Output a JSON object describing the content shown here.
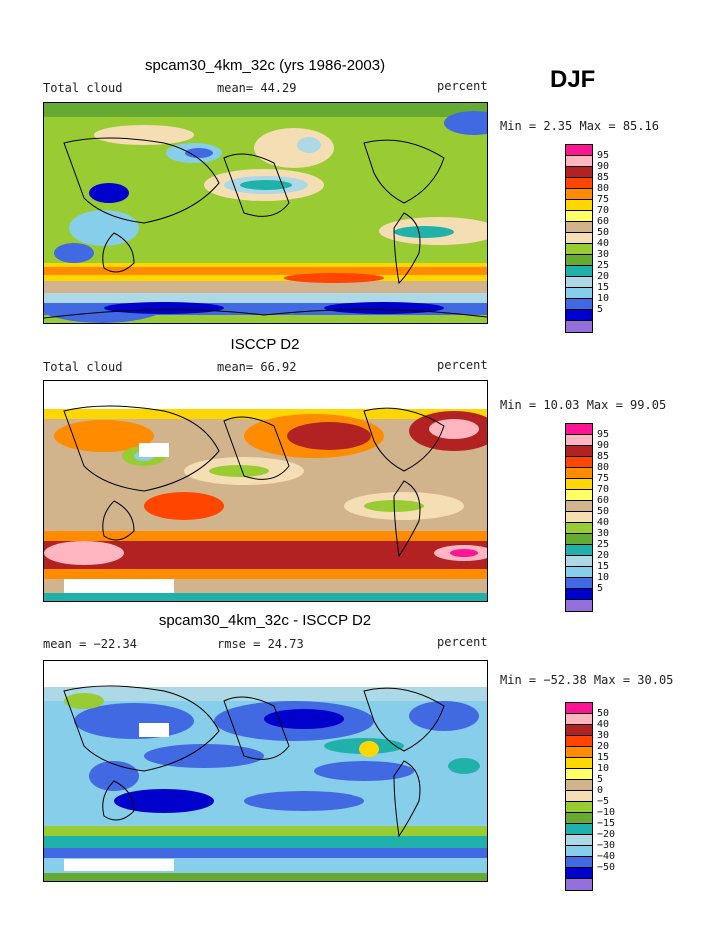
{
  "season": "DJF",
  "panels": [
    {
      "title": "spcam30_4km_32c (yrs 1986-2003)",
      "left_label": "Total cloud",
      "mid_label": "mean=  44.29",
      "right_label": "percent",
      "minmax": "Min =   2.35 Max =  85.16"
    },
    {
      "title": "ISCCP D2",
      "left_label": "Total cloud",
      "mid_label": "mean=  66.92",
      "right_label": "percent",
      "minmax": "Min =  10.03 Max =  99.05"
    },
    {
      "title": "spcam30_4km_32c - ISCCP D2",
      "left_label": "mean = −22.34",
      "mid_label": "rmse =  24.73",
      "right_label": "percent",
      "minmax": "Min = −52.38 Max =  30.05"
    }
  ],
  "colorbar_abs": {
    "colors": [
      "#ff1493",
      "#ffb6c1",
      "#b22222",
      "#ff4500",
      "#ff8c00",
      "#ffd700",
      "#ffff66",
      "#d2b48c",
      "#f5deb3",
      "#99cc33",
      "#66aa33",
      "#20b2aa",
      "#add8e6",
      "#87ceeb",
      "#4169e1",
      "#0000cd",
      "#9370db"
    ],
    "labels": [
      "95",
      "90",
      "85",
      "80",
      "75",
      "70",
      "60",
      "50",
      "40",
      "30",
      "25",
      "20",
      "15",
      "10",
      "5"
    ]
  },
  "colorbar_diff": {
    "colors": [
      "#ff1493",
      "#ffb6c1",
      "#b22222",
      "#ff4500",
      "#ff8c00",
      "#ffd700",
      "#ffff66",
      "#d2b48c",
      "#f5deb3",
      "#99cc33",
      "#66aa33",
      "#20b2aa",
      "#add8e6",
      "#87ceeb",
      "#4169e1",
      "#0000cd",
      "#9370db"
    ],
    "labels": [
      "50",
      "40",
      "30",
      "20",
      "15",
      "10",
      "5",
      "0",
      "−5",
      "−10",
      "−15",
      "−20",
      "−30",
      "−40",
      "−50"
    ]
  }
}
